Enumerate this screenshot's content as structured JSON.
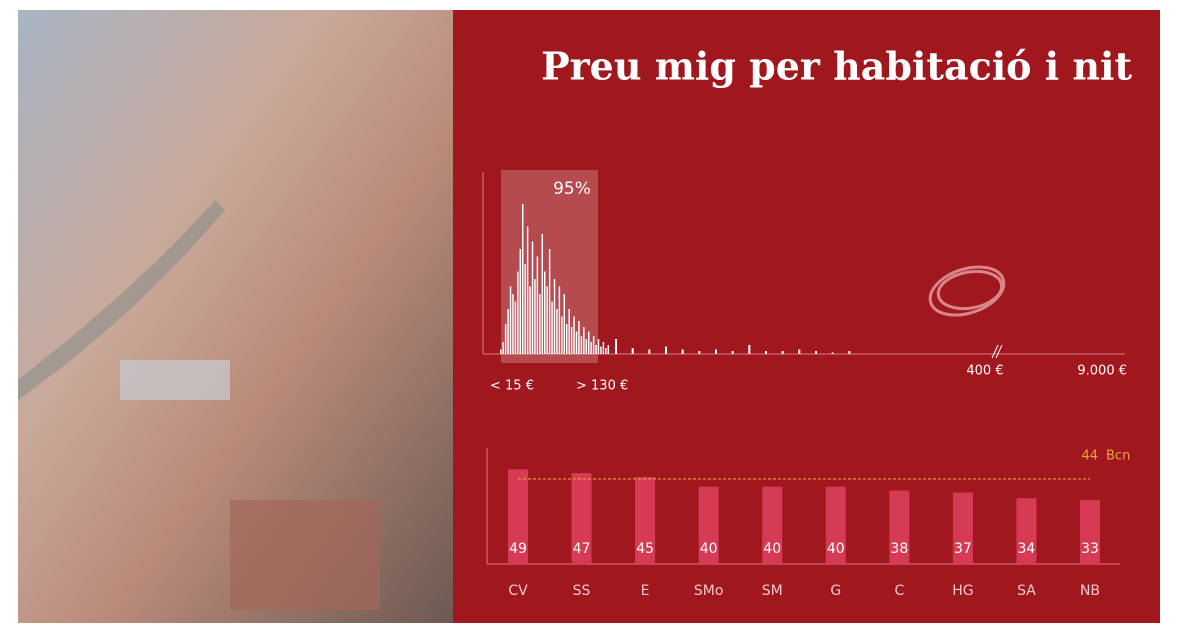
{
  "title": "Preu mig per habitació i nit",
  "chart_data": [
    {
      "type": "histogram",
      "highlight": {
        "value": 95,
        "label": "95%"
      },
      "values": [
        3,
        8,
        20,
        30,
        45,
        40,
        35,
        55,
        70,
        100,
        60,
        85,
        45,
        75,
        50,
        65,
        40,
        80,
        55,
        45,
        70,
        35,
        50,
        30,
        45,
        25,
        40,
        20,
        30,
        18,
        25,
        15,
        22,
        12,
        18,
        10,
        15,
        8,
        12,
        6,
        10,
        5,
        8,
        4,
        6
      ],
      "tail_values": [
        10,
        4,
        3,
        5,
        3,
        2,
        3,
        2,
        6,
        2,
        2,
        3,
        2,
        1,
        2
      ],
      "ylim": [
        0,
        100
      ],
      "x_labels": [
        "< 15 €",
        "> 130 €",
        "400 €",
        "9.000 €"
      ],
      "color": "#ffffff"
    },
    {
      "type": "bar",
      "categories": [
        "CV",
        "SS",
        "E",
        "SMo",
        "SM",
        "G",
        "C",
        "HG",
        "SA",
        "NB"
      ],
      "values": [
        49,
        47,
        45,
        40,
        40,
        40,
        38,
        37,
        34,
        33
      ],
      "color": "#d63a55",
      "ylim": [
        0,
        60
      ],
      "reference": {
        "name": "Bcn",
        "value": 44,
        "color": "#e8a33a"
      }
    }
  ]
}
